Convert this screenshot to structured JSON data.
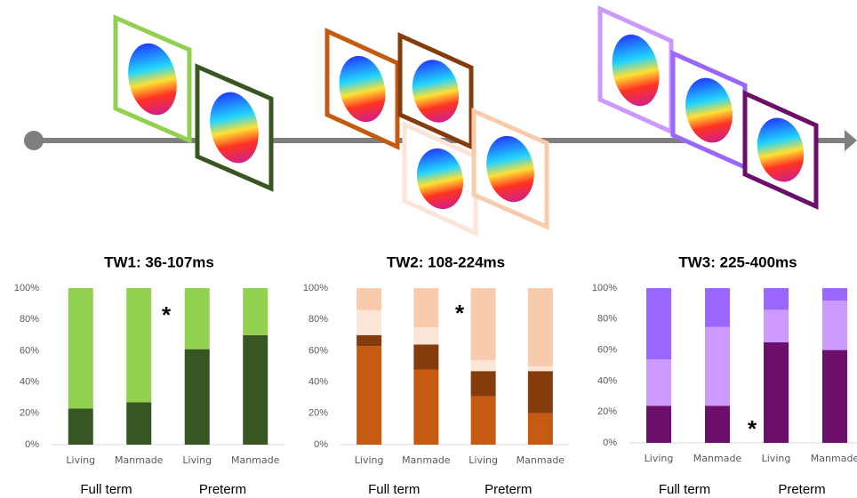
{
  "chart_data": [
    {
      "type": "bar",
      "stacked": true,
      "title": "TW1: 36-107ms",
      "categories": [
        "Living",
        "Manmade",
        "Living",
        "Manmade"
      ],
      "groups": [
        "Full term",
        "Preterm"
      ],
      "annotation": "*",
      "ylim": [
        0,
        100
      ],
      "yticks": [
        {
          "value": 0,
          "label": "0%"
        },
        {
          "value": 20,
          "label": "20%"
        },
        {
          "value": 40,
          "label": "40%"
        },
        {
          "value": 60,
          "label": "60%"
        },
        {
          "value": 80,
          "label": "80%"
        },
        {
          "value": 100,
          "label": "100%"
        }
      ],
      "grid": false,
      "series": [
        {
          "color": "#375623",
          "values": [
            23,
            27,
            61,
            70
          ]
        },
        {
          "color": "#92d050",
          "values": [
            77,
            73,
            39,
            30
          ]
        }
      ]
    },
    {
      "type": "bar",
      "stacked": true,
      "title": "TW2: 108-224ms",
      "categories": [
        "Living",
        "Manmade",
        "Living",
        "Manmade"
      ],
      "groups": [
        "Full term",
        "Preterm"
      ],
      "annotation": "*",
      "ylim": [
        0,
        100
      ],
      "yticks": [
        {
          "value": 0,
          "label": "0%"
        },
        {
          "value": 20,
          "label": "20%"
        },
        {
          "value": 40,
          "label": "40%"
        },
        {
          "value": 60,
          "label": "60%"
        },
        {
          "value": 80,
          "label": "80%"
        },
        {
          "value": 100,
          "label": "100%"
        }
      ],
      "grid": false,
      "series": [
        {
          "color": "#c55a11",
          "values": [
            63,
            48,
            31,
            20
          ]
        },
        {
          "color": "#843c0c",
          "values": [
            7,
            16,
            16,
            27
          ]
        },
        {
          "color": "#fbe5d6",
          "values": [
            16,
            11,
            7,
            3
          ]
        },
        {
          "color": "#f8cbad",
          "values": [
            14,
            25,
            46,
            50
          ]
        }
      ]
    },
    {
      "type": "bar",
      "stacked": true,
      "title": "TW3: 225-400ms",
      "categories": [
        "Living",
        "Manmade",
        "Living",
        "Manmade"
      ],
      "groups": [
        "Full term",
        "Preterm"
      ],
      "annotation": "*",
      "ylim": [
        0,
        100
      ],
      "yticks": [
        {
          "value": 0,
          "label": "0%"
        },
        {
          "value": 20,
          "label": "20%"
        },
        {
          "value": 40,
          "label": "40%"
        },
        {
          "value": 60,
          "label": "60%"
        },
        {
          "value": 80,
          "label": "80%"
        },
        {
          "value": 100,
          "label": "100%"
        }
      ],
      "grid": false,
      "series": [
        {
          "color": "#6b0f6b",
          "values": [
            24,
            24,
            65,
            60
          ]
        },
        {
          "color": "#cc99ff",
          "values": [
            30,
            51,
            21,
            32
          ]
        },
        {
          "color": "#9966ff",
          "values": [
            46,
            25,
            14,
            8
          ]
        }
      ]
    }
  ]
}
